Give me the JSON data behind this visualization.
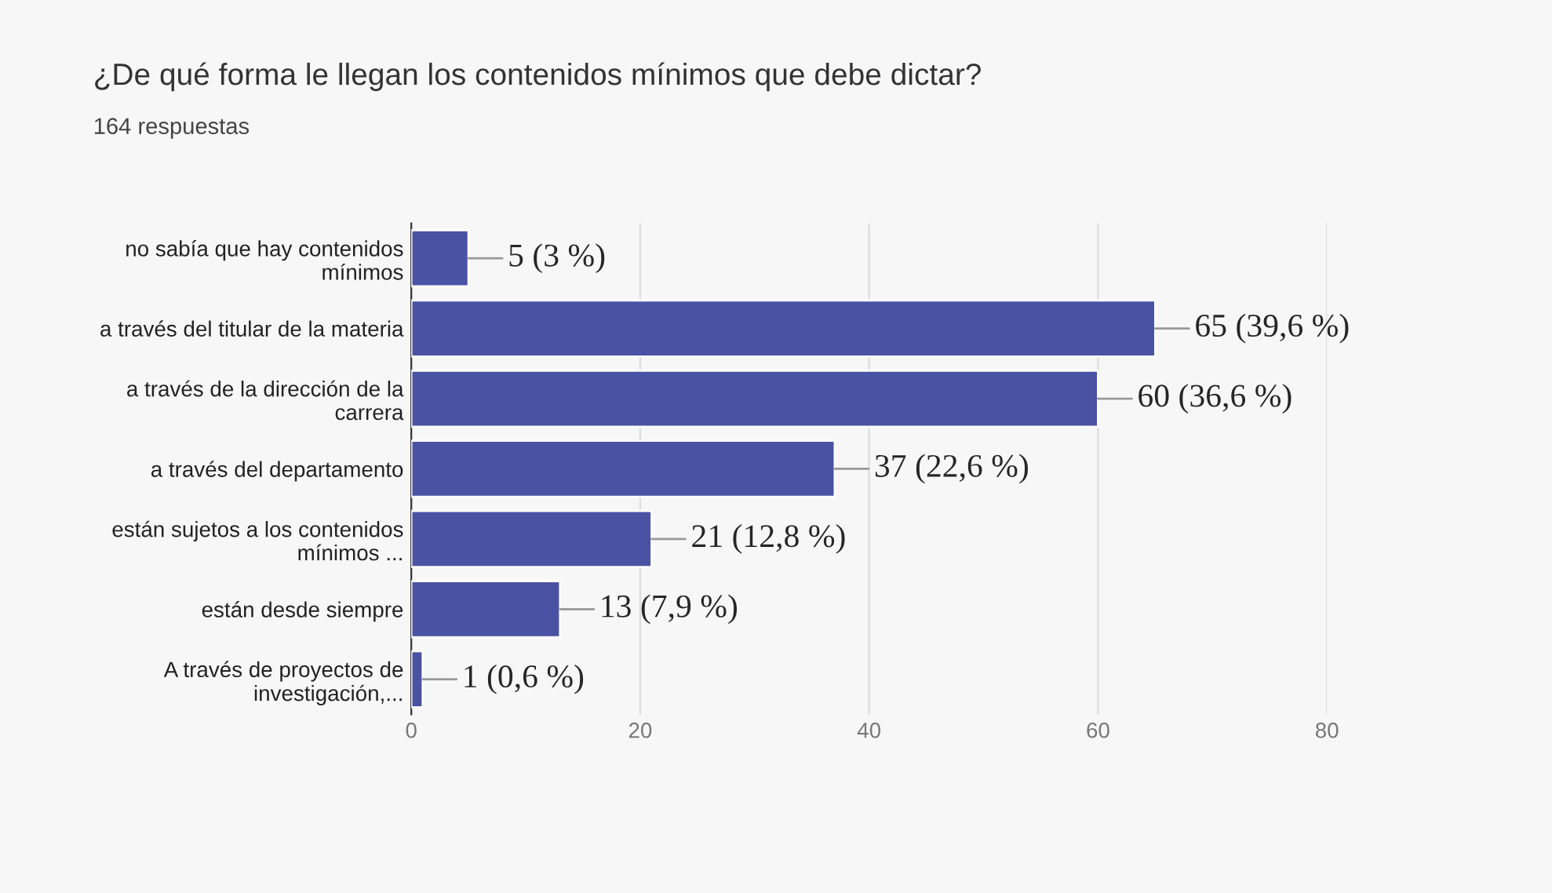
{
  "chart_data": {
    "type": "bar",
    "orientation": "horizontal",
    "title": "¿De qué forma le llegan los contenidos mínimos que debe dictar?",
    "subtitle": "164 respuestas",
    "categories": [
      "no sabía que hay contenidos\nmínimos",
      "a través del titular de la materia",
      "a través de la dirección de la\ncarrera",
      "a través del departamento",
      "están sujetos a los contenidos\nmínimos ...",
      "están desde siempre",
      "A través de proyectos de\ninvestigación,..."
    ],
    "values": [
      5,
      65,
      60,
      37,
      21,
      13,
      1
    ],
    "value_labels": [
      "5 (3 %)",
      "65 (39,6 %)",
      "60 (36,6 %)",
      "37 (22,6 %)",
      "21 (12,8 %)",
      "13 (7,9 %)",
      "1 (0,6 %)"
    ],
    "color": "#4a52a3",
    "xlim": [
      0,
      80
    ],
    "xticks": [
      0,
      20,
      40,
      60,
      80
    ],
    "grid": "x",
    "legend": false
  }
}
